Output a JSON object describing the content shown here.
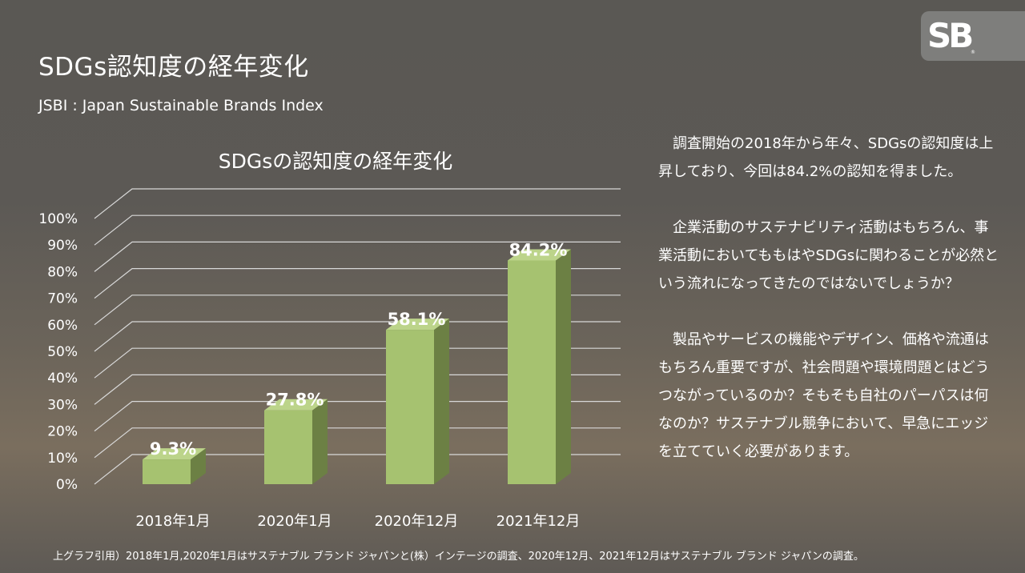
{
  "slide": {
    "title": "SDGs認知度の経年変化",
    "subtitle": "JSBI : Japan Sustainable Brands Index",
    "logo_text": "SB",
    "logo_mark": "®"
  },
  "description": {
    "paragraphs": [
      "　調査開始の2018年から年々、SDGsの認知度は上昇しており、今回は84.2%の認知を得ました。",
      "　企業活動のサステナビリティ活動はもちろん、事業活動においてももはやSDGsに関わることが必然という流れになってきたのではないでしょうか？",
      "　製品やサービスの機能やデザイン、価格や流通はもちろん重要ですが、社会問題や環境問題とはどうつながっているのか？そもそも自社のパーパスは何なのか？サステナブル競争において、早急にエッジを立てていく必要があります。"
    ]
  },
  "footnote": "上グラフ引用）2018年1月,2020年1月はサステナブル ブランド ジャパンと(株）インテージの調査、2020年12月、2021年12月はサステナブル ブランド ジャパンの調査。",
  "colors": {
    "bar_front": "#a6c270",
    "bar_top": "#bcd48a",
    "bar_side": "#6c8044",
    "grid": "#d8d8d8"
  },
  "chart_data": {
    "type": "bar",
    "title": "SDGsの認知度の経年変化",
    "categories": [
      "2018年1月",
      "2020年1月",
      "2020年12月",
      "2021年12月"
    ],
    "values": [
      9.3,
      27.8,
      58.1,
      84.2
    ],
    "data_labels": [
      "9.3%",
      "27.8%",
      "58.1%",
      "84.2%"
    ],
    "ylim": [
      0,
      100
    ],
    "yticks": [
      "0%",
      "10%",
      "20%",
      "30%",
      "40%",
      "50%",
      "60%",
      "70%",
      "80%",
      "90%",
      "100%"
    ],
    "grid": true,
    "legend": "none",
    "style": "3d-column"
  }
}
